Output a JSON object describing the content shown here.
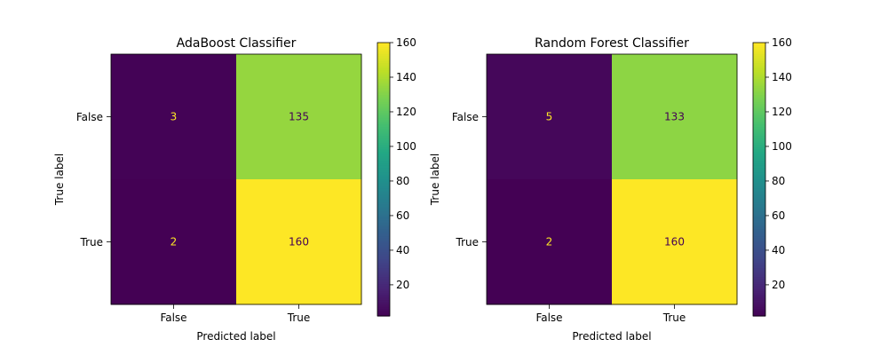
{
  "chart_data": [
    {
      "type": "heatmap",
      "title": "AdaBoost Classifier",
      "xlabel": "Predicted label",
      "ylabel": "True label",
      "x_categories": [
        "False",
        "True"
      ],
      "y_categories": [
        "False",
        "True"
      ],
      "values": [
        [
          3,
          135
        ],
        [
          2,
          160
        ]
      ],
      "cell_labels": [
        [
          "3",
          "135"
        ],
        [
          "2",
          "160"
        ]
      ],
      "colormap": "viridis",
      "colorbar": {
        "ticks": [
          20,
          40,
          60,
          80,
          100,
          120,
          140,
          160
        ],
        "tick_labels": [
          "20",
          "40",
          "60",
          "80",
          "100",
          "120",
          "140",
          "160"
        ],
        "range": [
          2,
          160
        ]
      },
      "grid": false
    },
    {
      "type": "heatmap",
      "title": "Random Forest Classifier",
      "xlabel": "Predicted label",
      "ylabel": "True label",
      "x_categories": [
        "False",
        "True"
      ],
      "y_categories": [
        "False",
        "True"
      ],
      "values": [
        [
          5,
          133
        ],
        [
          2,
          160
        ]
      ],
      "cell_labels": [
        [
          "5",
          "133"
        ],
        [
          "2",
          "160"
        ]
      ],
      "colormap": "viridis",
      "colorbar": {
        "ticks": [
          20,
          40,
          60,
          80,
          100,
          120,
          140,
          160
        ],
        "tick_labels": [
          "20",
          "40",
          "60",
          "80",
          "100",
          "120",
          "140",
          "160"
        ],
        "range": [
          2,
          160
        ]
      },
      "grid": false
    }
  ]
}
